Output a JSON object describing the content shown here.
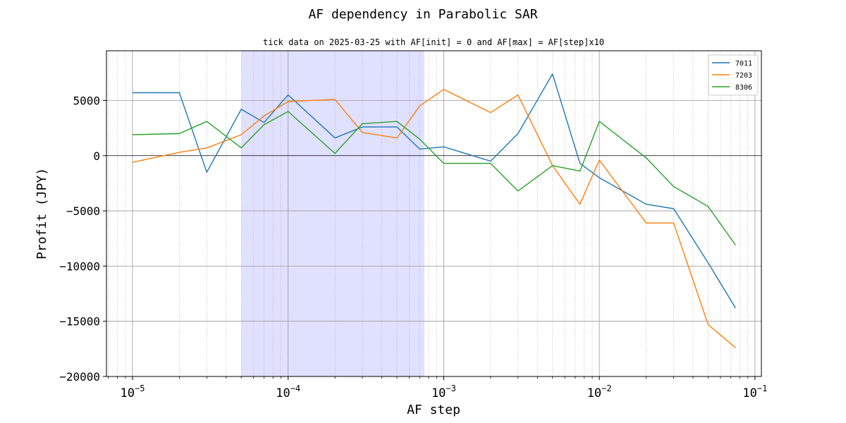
{
  "chart_data": {
    "type": "line",
    "title": "AF dependency in Parabolic SAR",
    "subtitle": "tick data on 2025-03-25 with AF[init] = 0 and AF[max] = AF[step]x10",
    "xlabel": "AF step",
    "ylabel": "Profit (JPY)",
    "xscale": "log",
    "xlim": [
      6.8e-06,
      0.11
    ],
    "ylim": [
      -20000,
      9500
    ],
    "grid": true,
    "legend_position": "top-right",
    "highlight_span": [
      5e-05,
      0.00075
    ],
    "highlight_color": "#e0e0ff",
    "yticks": [
      5000,
      0,
      -5000,
      -10000,
      -15000,
      -20000
    ],
    "ytick_labels": [
      "5000",
      "0",
      "−5000",
      "−10000",
      "−15000",
      "−20000"
    ],
    "xticks": [
      {
        "value": 1e-05,
        "base": "10",
        "exp": "−5"
      },
      {
        "value": 0.0001,
        "base": "10",
        "exp": "−4"
      },
      {
        "value": 0.001,
        "base": "10",
        "exp": "−3"
      },
      {
        "value": 0.01,
        "base": "10",
        "exp": "−2"
      },
      {
        "value": 0.1,
        "base": "10",
        "exp": "−1"
      }
    ],
    "x": [
      1e-05,
      2e-05,
      3e-05,
      5e-05,
      7e-05,
      0.0001,
      0.0002,
      0.0003,
      0.0005,
      0.0007,
      0.001,
      0.002,
      0.003,
      0.005,
      0.0075,
      0.01,
      0.02,
      0.03,
      0.05,
      0.075
    ],
    "series": [
      {
        "name": "7011",
        "color": "#1f77b4",
        "values": [
          5700,
          5700,
          -1500,
          4200,
          3000,
          5500,
          1600,
          2600,
          2600,
          600,
          800,
          -500,
          2000,
          7400,
          -700,
          -2000,
          -4400,
          -4800,
          -9700,
          -13800
        ]
      },
      {
        "name": "7203",
        "color": "#ff7f0e",
        "values": [
          -600,
          300,
          700,
          1900,
          3600,
          4900,
          5100,
          2100,
          1600,
          4500,
          6000,
          3900,
          5500,
          -900,
          -4400,
          -400,
          -6100,
          -6100,
          -15300,
          -17400
        ]
      },
      {
        "name": "8306",
        "color": "#2ca02c",
        "values": [
          1900,
          2000,
          3100,
          700,
          2800,
          4000,
          200,
          2900,
          3100,
          1500,
          -700,
          -700,
          -3200,
          -900,
          -1400,
          3100,
          -200,
          -2800,
          -4600,
          -8100
        ]
      }
    ]
  }
}
